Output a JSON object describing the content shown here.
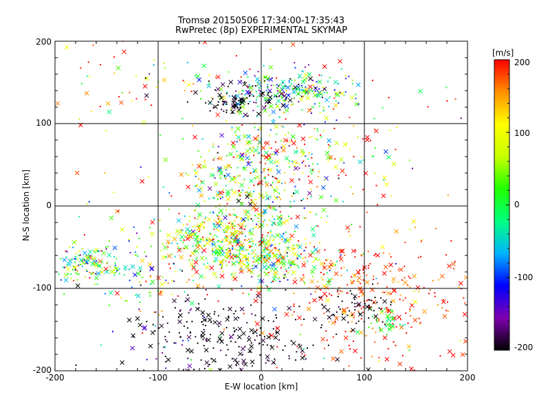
{
  "chart_data": {
    "type": "scatter",
    "title": "Tromsø 20150506 17:34:00-17:35:43",
    "subtitle": "RwPretec (8p) EXPERIMENTAL SKYMAP",
    "xlabel": "E-W location [km]",
    "ylabel": "N-S location [km]",
    "xlim": [
      -200,
      200
    ],
    "ylim": [
      -200,
      200
    ],
    "grid": true,
    "xticks": [
      "-200",
      "-100",
      "0",
      "100",
      "200"
    ],
    "yticks": [
      "-200",
      "-100",
      "0",
      "100",
      "200"
    ],
    "colorbar": {
      "unit": "[m/s]",
      "range": [
        -200,
        200
      ],
      "ticks": [
        "200",
        "100",
        "0",
        "-100",
        "-200"
      ],
      "colors": [
        "#000000",
        "#7f00b0",
        "#0000ff",
        "#00b4ff",
        "#00ff80",
        "#20ff00",
        "#c8ff00",
        "#ffff00",
        "#ff9000",
        "#ff0000"
      ]
    },
    "markers": [
      "dot",
      "cross"
    ],
    "clusters": [
      {
        "cx": 5,
        "cy": 140,
        "sx": 30,
        "sy": 12,
        "n": 200,
        "vmean": -80,
        "vsd": 110
      },
      {
        "cx": -25,
        "cy": 125,
        "sx": 12,
        "sy": 8,
        "n": 60,
        "vmean": -200,
        "vsd": 20
      },
      {
        "cx": -120,
        "cy": 145,
        "sx": 55,
        "sy": 25,
        "n": 60,
        "vmean": 100,
        "vsd": 120
      },
      {
        "cx": 55,
        "cy": 140,
        "sx": 25,
        "sy": 15,
        "n": 100,
        "vmean": -20,
        "vsd": 90
      },
      {
        "cx": 70,
        "cy": 75,
        "sx": 40,
        "sy": 25,
        "n": 60,
        "vmean": 100,
        "vsd": 110
      },
      {
        "cx": 0,
        "cy": 40,
        "sx": 35,
        "sy": 35,
        "n": 380,
        "vmean": 50,
        "vsd": 120
      },
      {
        "cx": -35,
        "cy": -35,
        "sx": 30,
        "sy": 22,
        "n": 420,
        "vmean": 80,
        "vsd": 100
      },
      {
        "cx": 10,
        "cy": -65,
        "sx": 30,
        "sy": 15,
        "n": 250,
        "vmean": 40,
        "vsd": 90
      },
      {
        "cx": -165,
        "cy": -70,
        "sx": 20,
        "sy": 10,
        "n": 150,
        "vmean": 0,
        "vsd": 110
      },
      {
        "cx": -110,
        "cy": -80,
        "sx": 30,
        "sy": 25,
        "n": 80,
        "vmean": 60,
        "vsd": 120
      },
      {
        "cx": 110,
        "cy": -110,
        "sx": 50,
        "sy": 40,
        "n": 320,
        "vmean": 185,
        "vsd": 30
      },
      {
        "cx": 95,
        "cy": -125,
        "sx": 20,
        "sy": 12,
        "n": 60,
        "vmean": -200,
        "vsd": 10
      },
      {
        "cx": 120,
        "cy": -140,
        "sx": 10,
        "sy": 8,
        "n": 40,
        "vmean": 0,
        "vsd": 40
      },
      {
        "cx": -15,
        "cy": -160,
        "sx": 40,
        "sy": 25,
        "n": 180,
        "vmean": -200,
        "vsd": 15
      },
      {
        "cx": -85,
        "cy": -150,
        "sx": 20,
        "sy": 30,
        "n": 70,
        "vmean": -180,
        "vsd": 60
      },
      {
        "cx": 0,
        "cy": 0,
        "sx": 160,
        "sy": 160,
        "n": 220,
        "vmean": 100,
        "vsd": 150
      }
    ]
  }
}
